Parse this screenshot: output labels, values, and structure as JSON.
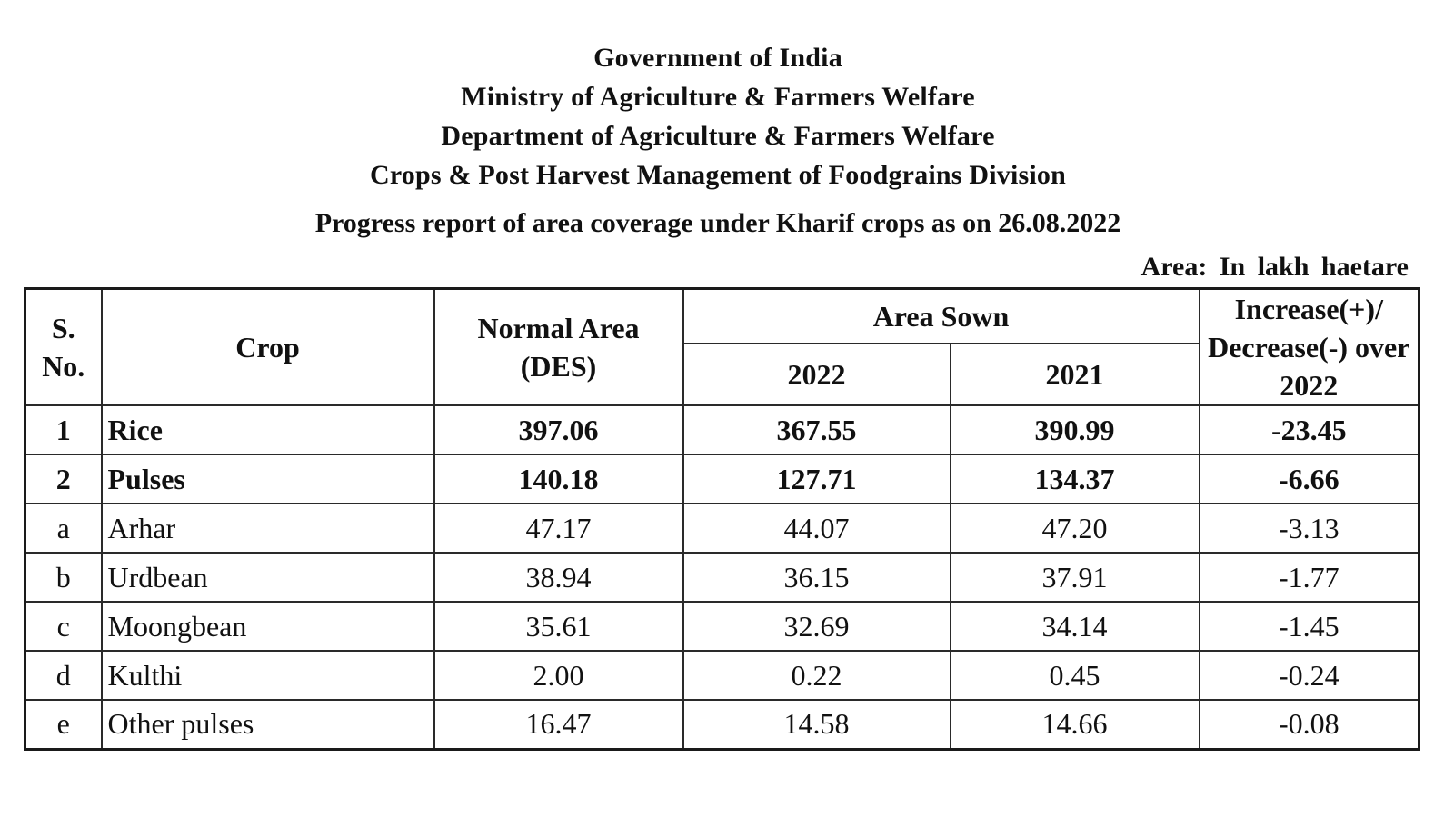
{
  "header": {
    "lines": [
      "Government of India",
      "Ministry of Agriculture & Farmers Welfare",
      "Department of Agriculture & Farmers Welfare",
      "Crops & Post Harvest Management of Foodgrains Division"
    ],
    "title": "Progress report of area coverage under Kharif crops as on 26.08.2022",
    "unit": "Area: In lakh haetare"
  },
  "table": {
    "headers": {
      "sno": "S. No.",
      "crop": "Crop",
      "normal_area": "Normal Area (DES)",
      "area_sown": "Area Sown",
      "year_2022": "2022",
      "year_2021": "2021",
      "change": "Increase(+)/ Decrease(-) over 2022"
    },
    "rows": [
      {
        "sno": "1",
        "crop": "Rice",
        "normal": "397.06",
        "y2022": "367.55",
        "y2021": "390.99",
        "change": "-23.45"
      },
      {
        "sno": "2",
        "crop": "Pulses",
        "normal": "140.18",
        "y2022": "127.71",
        "y2021": "134.37",
        "change": "-6.66"
      },
      {
        "sno": "a",
        "crop": "Arhar",
        "normal": "47.17",
        "y2022": "44.07",
        "y2021": "47.20",
        "change": "-3.13"
      },
      {
        "sno": "b",
        "crop": "Urdbean",
        "normal": "38.94",
        "y2022": "36.15",
        "y2021": "37.91",
        "change": "-1.77"
      },
      {
        "sno": "c",
        "crop": "Moongbean",
        "normal": "35.61",
        "y2022": "32.69",
        "y2021": "34.14",
        "change": "-1.45"
      },
      {
        "sno": "d",
        "crop": "Kulthi",
        "normal": "2.00",
        "y2022": "0.22",
        "y2021": "0.45",
        "change": "-0.24"
      },
      {
        "sno": "e",
        "crop": "Other pulses",
        "normal": "16.47",
        "y2022": "14.58",
        "y2021": "14.66",
        "change": "-0.08"
      }
    ]
  }
}
